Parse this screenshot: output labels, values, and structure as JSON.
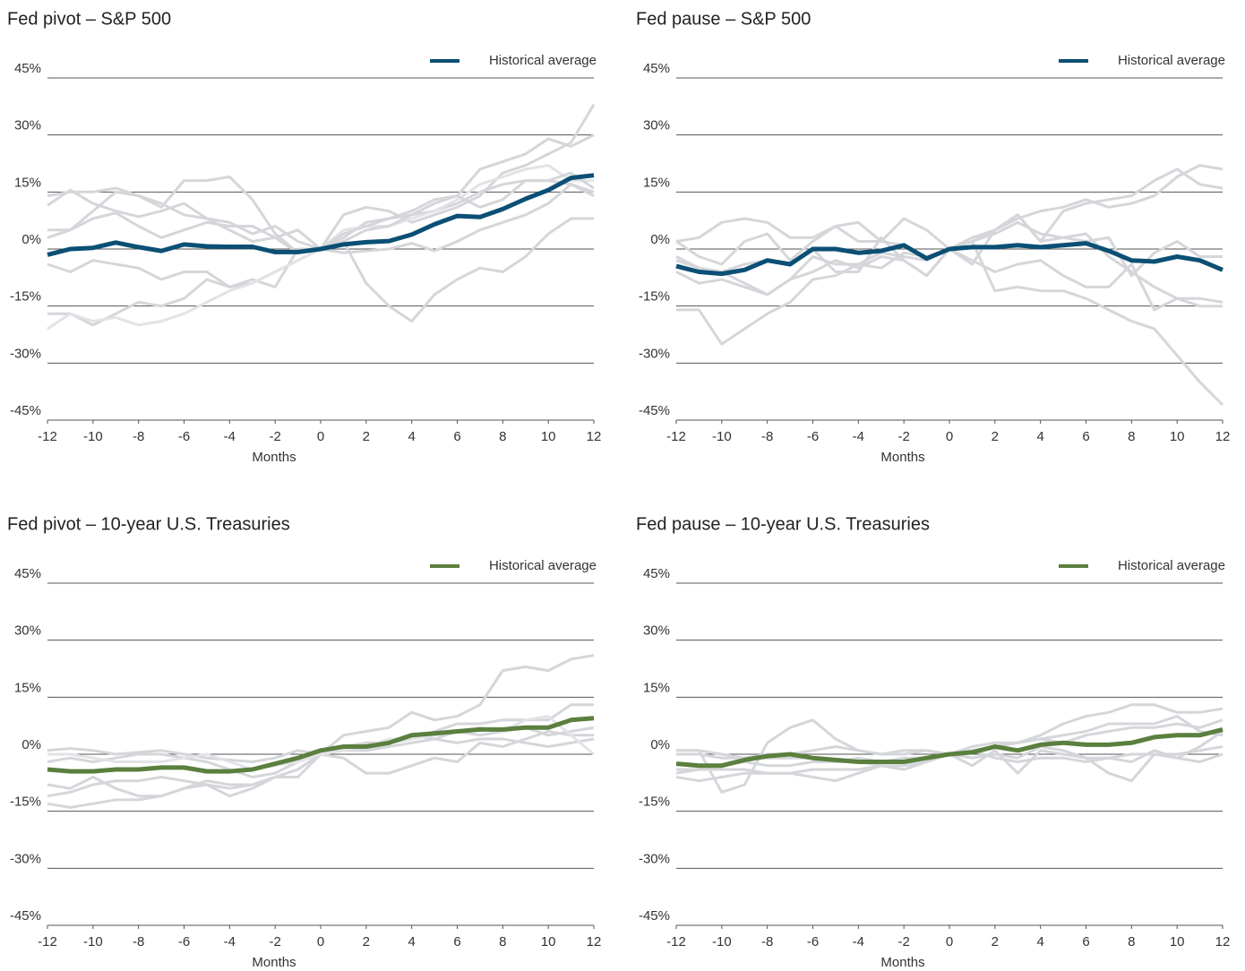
{
  "chart_data": [
    {
      "type": "line",
      "title": "Fed pivot – S&P 500",
      "xlabel": "Months",
      "legend": "upper right",
      "x": [
        -12,
        -11,
        -10,
        -9,
        -8,
        -7,
        -6,
        -5,
        -4,
        -3,
        -2,
        -1,
        0,
        1,
        2,
        3,
        4,
        5,
        6,
        7,
        8,
        9,
        10,
        11,
        12
      ],
      "xlim": [
        -12,
        12
      ],
      "xticks": [
        -12,
        -10,
        -8,
        -6,
        -4,
        -2,
        0,
        2,
        4,
        6,
        8,
        10,
        12
      ],
      "ylim": [
        -45,
        45
      ],
      "yticks": [
        {
          "value": -45,
          "label": "-45%"
        },
        {
          "value": -30,
          "label": "-30%"
        },
        {
          "value": -15,
          "label": "-15%"
        },
        {
          "value": 0,
          "label": "0%"
        },
        {
          "value": 15,
          "label": "15%"
        },
        {
          "value": 30,
          "label": "30%"
        },
        {
          "value": 45,
          "label": "45%"
        }
      ],
      "grid": true,
      "series": [
        {
          "color": "#d4d6da",
          "values": [
            11.5,
            15.5,
            12,
            10,
            8.5,
            10,
            12,
            8,
            5,
            2,
            3,
            5,
            0,
            3,
            7,
            8,
            9,
            10,
            12,
            15,
            17,
            18,
            18,
            17,
            15
          ]
        },
        {
          "color": "#d4d6da",
          "values": [
            5,
            5,
            8,
            9.5,
            6,
            3,
            5,
            7,
            6,
            6,
            3,
            -1,
            0,
            9,
            11,
            10,
            7,
            9,
            11,
            14,
            20,
            22,
            25,
            28,
            38
          ]
        },
        {
          "color": "#d4d6da",
          "values": [
            -4,
            -6,
            -3,
            -4,
            -5,
            -8,
            -6,
            -6,
            -10,
            -9,
            -6,
            -3,
            0,
            -1,
            -0.5,
            0,
            1.5,
            -0.5,
            2,
            5,
            7,
            9,
            12,
            17,
            14
          ]
        },
        {
          "color": "#d4d6da",
          "values": [
            -17,
            -17,
            -20,
            -17,
            -14,
            -15,
            -13,
            -8,
            -10,
            -8,
            -10,
            0,
            0,
            2,
            -9,
            -15,
            -19,
            -12,
            -8,
            -5,
            -6,
            -2,
            4,
            8,
            8
          ]
        },
        {
          "color": "#e2e3e6",
          "values": [
            -21,
            -17,
            -19,
            -18,
            -20,
            -19,
            -17,
            -14,
            -11,
            -9,
            -6,
            -3,
            0,
            5,
            6,
            6,
            8,
            10,
            13,
            17,
            19,
            21,
            22,
            18,
            18
          ]
        },
        {
          "color": "#d4d6da",
          "values": [
            3,
            5,
            10,
            15,
            14,
            12,
            9,
            8,
            7,
            4,
            6,
            2,
            0,
            4,
            6,
            8,
            10,
            13,
            14,
            21,
            23,
            25,
            29,
            27,
            30
          ]
        },
        {
          "color": "#d4d6da",
          "values": [
            14,
            15,
            15,
            16,
            14,
            11,
            18,
            18,
            19,
            13,
            4,
            -1,
            0,
            2,
            5,
            6,
            9,
            12,
            14,
            11,
            13,
            18,
            18,
            20,
            16
          ]
        },
        {
          "name": "Historical average",
          "color": "#0b4f75",
          "values": [
            -1.5,
            0,
            0.3,
            1.7,
            0.5,
            -0.5,
            1.2,
            0.7,
            0.6,
            0.6,
            -0.8,
            -0.8,
            0,
            1.2,
            1.8,
            2.1,
            3.8,
            6.5,
            8.7,
            8.4,
            10.5,
            13.2,
            15.5,
            18.7,
            19.4
          ]
        }
      ]
    },
    {
      "type": "line",
      "title": "Fed pause – S&P 500",
      "xlabel": "Months",
      "legend": "upper right",
      "x": [
        -12,
        -11,
        -10,
        -9,
        -8,
        -7,
        -6,
        -5,
        -4,
        -3,
        -2,
        -1,
        0,
        1,
        2,
        3,
        4,
        5,
        6,
        7,
        8,
        9,
        10,
        11,
        12
      ],
      "xlim": [
        -12,
        12
      ],
      "xticks": [
        -12,
        -10,
        -8,
        -6,
        -4,
        -2,
        0,
        2,
        4,
        6,
        8,
        10,
        12
      ],
      "ylim": [
        -45,
        45
      ],
      "yticks": [
        {
          "value": -45,
          "label": "-45%"
        },
        {
          "value": -30,
          "label": "-30%"
        },
        {
          "value": -15,
          "label": "-15%"
        },
        {
          "value": 0,
          "label": "0%"
        },
        {
          "value": 15,
          "label": "15%"
        },
        {
          "value": 30,
          "label": "30%"
        },
        {
          "value": 45,
          "label": "45%"
        }
      ],
      "grid": true,
      "series": [
        {
          "color": "#d4d6da",
          "values": [
            2,
            3,
            7,
            8,
            7,
            3,
            3,
            6,
            7,
            2,
            1,
            -2,
            0,
            3,
            5,
            8,
            10,
            11,
            13,
            11,
            12,
            14,
            19,
            22,
            21
          ]
        },
        {
          "color": "#d4d6da",
          "values": [
            -16,
            -16,
            -25,
            -21,
            -17,
            -14,
            -8,
            -7,
            -4,
            -1,
            -2,
            -3,
            0,
            2,
            5,
            9,
            2,
            10,
            12,
            13,
            14,
            18,
            21,
            17,
            16
          ]
        },
        {
          "color": "#d4d6da",
          "values": [
            -6,
            -9,
            -8,
            -10,
            -12,
            -8,
            -6,
            -3,
            -5,
            -2,
            -3,
            -7,
            0,
            2,
            -11,
            -10,
            -11,
            -11,
            -13,
            -16,
            -19,
            -21,
            -28,
            -35,
            -41
          ]
        },
        {
          "color": "#d4d6da",
          "values": [
            2,
            -2,
            -4,
            2,
            4,
            -3,
            2,
            6,
            2,
            2,
            8,
            5,
            0,
            -3,
            -6,
            -4,
            -3,
            -7,
            -10,
            -10,
            -4,
            -16,
            -13,
            -13,
            -14
          ]
        },
        {
          "color": "#d4d6da",
          "values": [
            -2,
            -5,
            -6,
            -4,
            -3,
            -4,
            0,
            -6,
            -6,
            3,
            -3,
            -7,
            0,
            -4,
            5,
            9,
            2,
            3,
            2,
            3,
            -7,
            -1,
            2,
            -2,
            -2
          ]
        },
        {
          "color": "#d4d6da",
          "values": [
            -3,
            -5,
            -6,
            -9,
            -12,
            -8,
            -2,
            -4,
            -4,
            -5,
            -1,
            -2,
            0,
            2,
            4,
            7,
            4,
            3,
            4,
            -2,
            -6,
            -10,
            -13,
            -15,
            -15
          ]
        },
        {
          "name": "Historical average",
          "color": "#0b4f75",
          "values": [
            -4.5,
            -6,
            -6.5,
            -5.5,
            -3,
            -4,
            0,
            0,
            -1,
            -0.5,
            1,
            -2.5,
            0,
            0.5,
            0.5,
            1,
            0.5,
            1,
            1.5,
            -0.5,
            -3,
            -3.3,
            -2,
            -3,
            -5.5
          ]
        }
      ]
    },
    {
      "type": "line",
      "title": "Fed pivot – 10-year U.S. Treasuries",
      "xlabel": "Months",
      "legend": "upper right",
      "x": [
        -12,
        -11,
        -10,
        -9,
        -8,
        -7,
        -6,
        -5,
        -4,
        -3,
        -2,
        -1,
        0,
        1,
        2,
        3,
        4,
        5,
        6,
        7,
        8,
        9,
        10,
        11,
        12
      ],
      "xlim": [
        -12,
        12
      ],
      "xticks": [
        -12,
        -10,
        -8,
        -6,
        -4,
        -2,
        0,
        2,
        4,
        6,
        8,
        10,
        12
      ],
      "ylim": [
        -45,
        45
      ],
      "yticks": [
        {
          "value": -45,
          "label": "-45%"
        },
        {
          "value": -30,
          "label": "-30%"
        },
        {
          "value": -15,
          "label": "-15%"
        },
        {
          "value": 0,
          "label": "0%"
        },
        {
          "value": 15,
          "label": "15%"
        },
        {
          "value": 30,
          "label": "30%"
        },
        {
          "value": 45,
          "label": "45%"
        }
      ],
      "grid": true,
      "series": [
        {
          "color": "#d4d6da",
          "values": [
            1,
            1.5,
            1,
            0,
            0.5,
            1,
            0,
            -1,
            -1.5,
            -2,
            -1,
            1,
            0,
            5,
            6,
            7,
            11,
            9,
            10,
            13,
            22,
            23,
            22,
            25,
            26
          ]
        },
        {
          "color": "#d4d6da",
          "values": [
            -11,
            -10,
            -8,
            -7,
            -7,
            -6,
            -7,
            -8,
            -11,
            -9,
            -6,
            -6,
            0,
            2,
            3,
            3,
            4,
            6,
            8,
            8,
            9,
            9,
            9,
            13,
            13
          ]
        },
        {
          "color": "#d4d6da",
          "values": [
            -13,
            -14,
            -13,
            -12,
            -12,
            -11,
            -9,
            -7,
            -8,
            -8,
            -6,
            -4,
            0,
            2,
            3,
            3,
            5,
            4,
            6,
            5,
            6,
            7,
            5,
            6,
            7
          ]
        },
        {
          "color": "#d4d6da",
          "values": [
            -8,
            -9,
            -6,
            -9,
            -11,
            -11,
            -9,
            -8,
            -9,
            -8,
            -6,
            -4,
            0,
            -1,
            -5,
            -5,
            -3,
            -1,
            -2,
            3,
            2,
            4,
            6,
            5,
            5
          ]
        },
        {
          "color": "#d4d6da",
          "values": [
            -2,
            -1,
            -2,
            -1,
            0,
            0,
            -1,
            -2,
            -4,
            -6,
            -5,
            -2,
            0,
            1,
            1,
            2,
            3,
            4,
            3,
            4,
            4,
            3,
            2,
            3,
            4
          ]
        },
        {
          "color": "#e2e3e6",
          "values": [
            0,
            0,
            -1,
            -2,
            -2,
            -2,
            -1,
            0,
            -2,
            -4,
            -3,
            -2,
            0,
            1,
            2,
            4,
            4,
            5,
            6,
            7,
            6,
            9,
            10,
            5,
            0
          ]
        },
        {
          "name": "Historical average",
          "color": "#5a7f3e",
          "values": [
            -4,
            -4.5,
            -4.5,
            -4,
            -4,
            -3.5,
            -3.5,
            -4.5,
            -4.5,
            -4,
            -2.5,
            -1,
            1,
            2,
            2,
            3,
            5,
            5.5,
            6,
            6.5,
            6.5,
            7,
            7,
            9,
            9.5
          ]
        }
      ]
    },
    {
      "type": "line",
      "title": "Fed pause – 10-year U.S. Treasuries",
      "xlabel": "Months",
      "legend": "upper right",
      "x": [
        -12,
        -11,
        -10,
        -9,
        -8,
        -7,
        -6,
        -5,
        -4,
        -3,
        -2,
        -1,
        0,
        1,
        2,
        3,
        4,
        5,
        6,
        7,
        8,
        9,
        10,
        11,
        12
      ],
      "xlim": [
        -12,
        12
      ],
      "xticks": [
        -12,
        -10,
        -8,
        -6,
        -4,
        -2,
        0,
        2,
        4,
        6,
        8,
        10,
        12
      ],
      "ylim": [
        -45,
        45
      ],
      "yticks": [
        {
          "value": -45,
          "label": "-45%"
        },
        {
          "value": -30,
          "label": "-30%"
        },
        {
          "value": -15,
          "label": "-15%"
        },
        {
          "value": 0,
          "label": "0%"
        },
        {
          "value": 15,
          "label": "15%"
        },
        {
          "value": 30,
          "label": "30%"
        },
        {
          "value": 45,
          "label": "45%"
        }
      ],
      "grid": true,
      "series": [
        {
          "color": "#d4d6da",
          "values": [
            1,
            1,
            -10,
            -8,
            3,
            7,
            9,
            4,
            1,
            0,
            0,
            1,
            0,
            -3,
            1,
            -5,
            1,
            0,
            -1,
            -5,
            -7,
            0,
            -1,
            -2,
            0
          ]
        },
        {
          "color": "#d4d6da",
          "values": [
            -6,
            -7,
            -6,
            -5,
            -5,
            -5,
            -6,
            -7,
            -5,
            -3,
            -4,
            -2,
            0,
            1,
            2,
            3,
            5,
            8,
            10,
            11,
            13,
            13,
            11,
            11,
            12
          ]
        },
        {
          "color": "#d4d6da",
          "values": [
            1,
            1,
            0,
            -1,
            0,
            0,
            1,
            2,
            1,
            0,
            1,
            1,
            0,
            2,
            3,
            3,
            4,
            5,
            6,
            8,
            8,
            8,
            10,
            6,
            5
          ]
        },
        {
          "color": "#d4d6da",
          "values": [
            -4,
            -4,
            -4,
            -4,
            -5,
            -5,
            -4,
            -4,
            -4,
            -3,
            -4,
            -2,
            0,
            1,
            2,
            3,
            4,
            3,
            5,
            6,
            7,
            7,
            8,
            7,
            9
          ]
        },
        {
          "color": "#d4d6da",
          "values": [
            -5,
            -4,
            -3,
            -2,
            -3,
            -3,
            -2,
            -2,
            -2,
            -3,
            -3,
            -2,
            0,
            -1,
            0,
            -1,
            2,
            1,
            -1,
            -1,
            0,
            0,
            0,
            1,
            2
          ]
        },
        {
          "color": "#d4d6da",
          "values": [
            0,
            0,
            -1,
            -1,
            -1,
            -1,
            -1,
            -2,
            -1,
            -2,
            -1,
            -1,
            0,
            1,
            -1,
            -2,
            -1,
            -1,
            -2,
            -1,
            -2,
            1,
            -1,
            2,
            6
          ]
        },
        {
          "name": "Historical average",
          "color": "#5a7f3e",
          "values": [
            -2.5,
            -3,
            -3,
            -1.5,
            -0.5,
            0,
            -1,
            -1.5,
            -2,
            -2,
            -2,
            -1,
            0,
            0.5,
            2,
            1,
            2.5,
            3,
            2.5,
            2.5,
            3,
            4.5,
            5,
            5,
            6.5
          ]
        }
      ]
    }
  ]
}
